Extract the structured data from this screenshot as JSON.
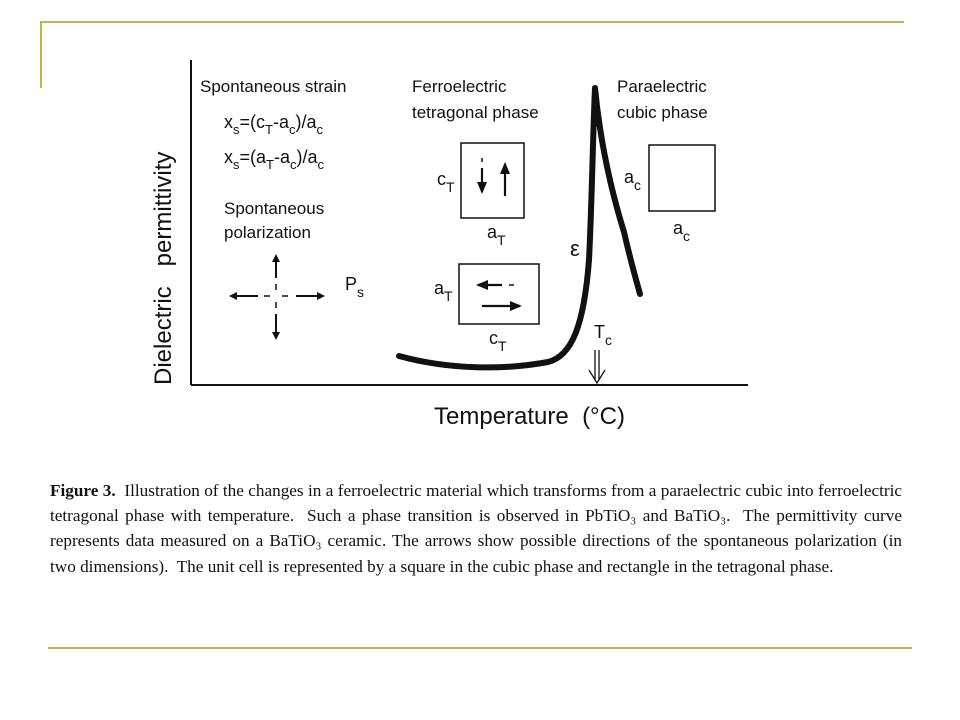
{
  "slide": {
    "accent_color": "#c8b14a"
  },
  "figure": {
    "y_axis_label": "Dielectric   permittivity",
    "x_axis_label": "Temperature  (°C)",
    "strain_title": "Spontaneous strain",
    "eq1": {
      "lhs": "x",
      "lhs_sub": "s",
      "p1": "=(c",
      "s1": "T",
      "p2": "-a",
      "s2": "c",
      "p3": ")/a",
      "s3": "c"
    },
    "eq2": {
      "lhs": "x",
      "lhs_sub": "s",
      "p1": "=(a",
      "s1": "T",
      "p2": "-a",
      "s2": "c",
      "p3": ")/a",
      "s3": "c"
    },
    "polarization_title_1": "Spontaneous",
    "polarization_title_2": "polarization",
    "ps_main": "P",
    "ps_sub": "s",
    "ferro_title_1": "Ferroelectric",
    "ferro_title_2": "tetragonal phase",
    "para_title_1": "Paraelectric",
    "para_title_2": "cubic phase",
    "c_letter": "c",
    "a_letter": "a",
    "sub_T": "T",
    "sub_c": "c",
    "epsilon": "ε",
    "tc_main": "T",
    "tc_sub": "c"
  },
  "caption": {
    "label": "Figure 3.",
    "text": "  Illustration of the changes in a ferroelectric material which transforms from a paraelectric cubic into ferroelectric tetragonal phase with temperature.  Such a phase transition is observed in PbTiO₃ and BaTiO₃.  The permittivity curve represents data measured on a BaTiO₃ ceramic. The arrows show possible directions of the spontaneous polarization (in two dimensions).  The unit cell is represented by a square in the cubic phase and rectangle in the tetragonal phase."
  }
}
